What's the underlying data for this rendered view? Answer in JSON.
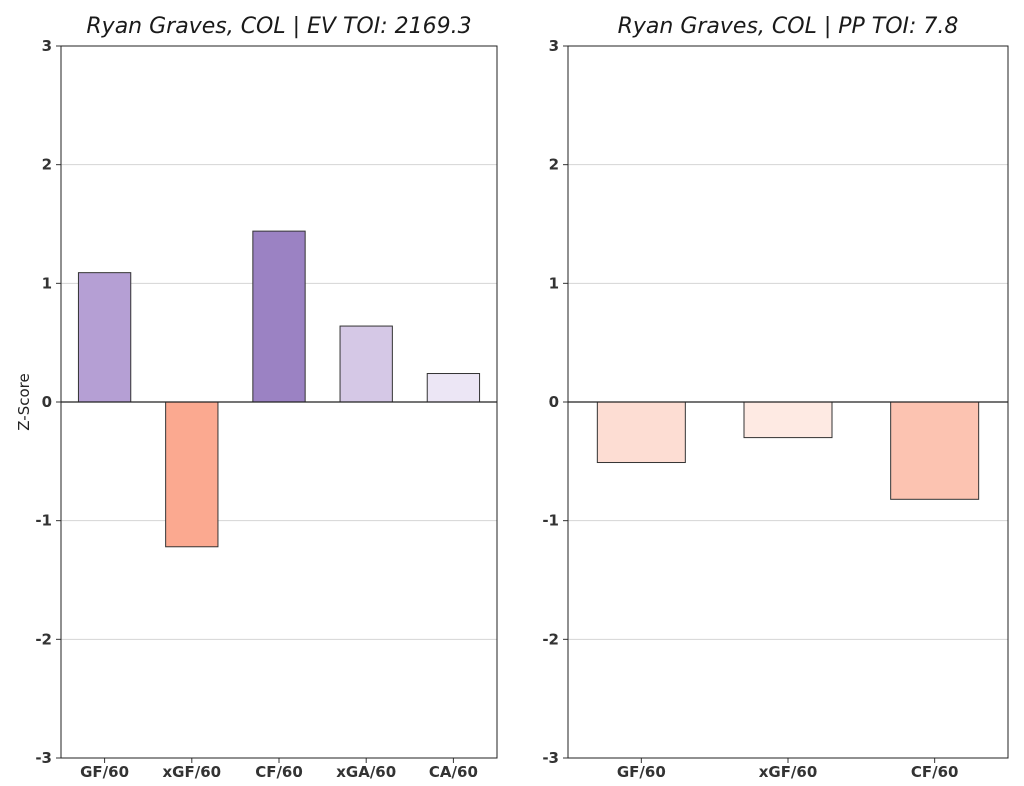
{
  "chart_data": [
    {
      "type": "bar",
      "title": "Ryan Graves, COL  |  EV TOI: 2169.3",
      "xlabel": "",
      "ylabel": "Z-Score",
      "ylim": [
        -3,
        3
      ],
      "yticks": [
        -3,
        -2,
        -1,
        0,
        1,
        2,
        3
      ],
      "grid": true,
      "categories": [
        "GF/60",
        "xGF/60",
        "CF/60",
        "xGA/60",
        "CA/60"
      ],
      "values": [
        1.09,
        -1.22,
        1.44,
        0.64,
        0.24
      ],
      "colors": [
        "#b59fd4",
        "#fba990",
        "#9b82c3",
        "#d5c8e6",
        "#ece6f5"
      ]
    },
    {
      "type": "bar",
      "title": "Ryan Graves, COL  |  PP TOI: 7.8",
      "xlabel": "",
      "ylabel": "",
      "ylim": [
        -3,
        3
      ],
      "yticks": [
        -3,
        -2,
        -1,
        0,
        1,
        2,
        3
      ],
      "grid": true,
      "categories": [
        "GF/60",
        "xGF/60",
        "CF/60"
      ],
      "values": [
        -0.51,
        -0.3,
        -0.82
      ],
      "colors": [
        "#fdddd3",
        "#feeae3",
        "#fcc3b1"
      ]
    }
  ]
}
